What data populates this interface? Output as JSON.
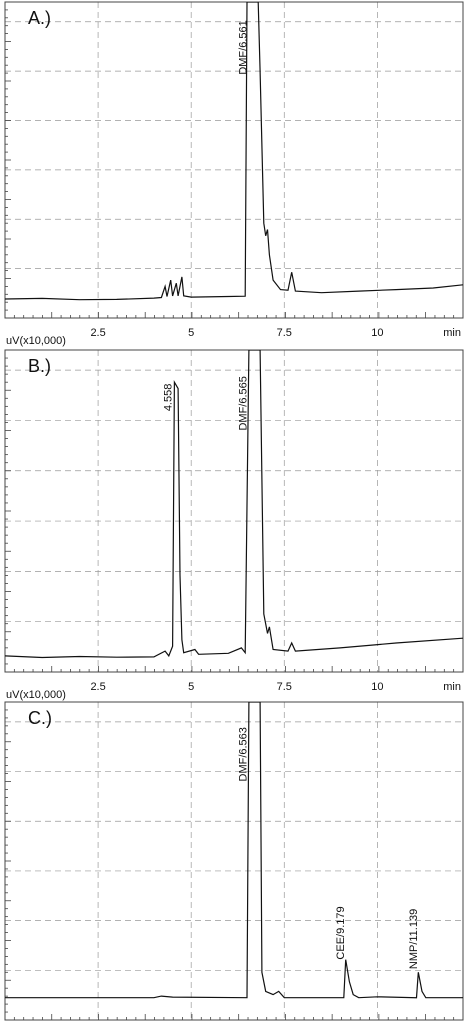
{
  "chart_data": [
    {
      "type": "line",
      "title": "A.)",
      "x_label": "min",
      "y_label": "uV(x10,000)",
      "color": "#111111",
      "xlim": [
        0,
        12.3
      ],
      "ylim": [
        0,
        100
      ],
      "xticks": [
        2.5,
        5.0,
        7.5,
        10.0
      ],
      "grid": true,
      "show_xtick_labels": true,
      "x": [
        0,
        1,
        2,
        3,
        4,
        4.2,
        4.3,
        4.35,
        4.45,
        4.5,
        4.6,
        4.65,
        4.75,
        4.8,
        5,
        6,
        6.45,
        6.5,
        6.8,
        6.85,
        6.95,
        7.0,
        7.05,
        7.1,
        7.2,
        7.4,
        7.6,
        7.7,
        7.8,
        8.5,
        9.5,
        10.5,
        11.5,
        12.3
      ],
      "values": [
        6,
        6.2,
        5.8,
        5.9,
        6.3,
        6.5,
        10,
        6.8,
        12,
        7,
        11,
        7,
        13,
        7,
        6.6,
        6.8,
        6.9,
        100,
        100,
        78,
        30,
        26,
        28,
        20,
        12,
        9,
        8.8,
        14.5,
        8.5,
        8,
        8.5,
        9,
        9.5,
        10.5
      ],
      "annotations": [
        {
          "text": "DMF/6.561",
          "x": 6.561,
          "y": 77
        }
      ]
    },
    {
      "type": "line",
      "title": "B.)",
      "x_label": "min",
      "y_label": "uV(x10,000)",
      "color": "#111111",
      "xlim": [
        0,
        12.3
      ],
      "ylim": [
        0,
        100
      ],
      "xticks": [
        2.5,
        5.0,
        7.5,
        10.0
      ],
      "grid": true,
      "show_xtick_labels": true,
      "x": [
        0,
        1,
        2,
        3,
        4,
        4.3,
        4.4,
        4.5,
        4.55,
        4.65,
        4.7,
        4.75,
        4.8,
        5.1,
        5.2,
        6,
        6.35,
        6.45,
        6.55,
        6.85,
        6.95,
        7.05,
        7.1,
        7.2,
        7.6,
        7.7,
        7.8,
        9,
        10.5,
        12.3
      ],
      "values": [
        5,
        4.5,
        4.8,
        4.6,
        4.7,
        6.5,
        5,
        8,
        90,
        88,
        30,
        10,
        6,
        7,
        5.5,
        5.8,
        7.5,
        6,
        100,
        100,
        18,
        12,
        14,
        7,
        6.5,
        9,
        6.5,
        7.5,
        9,
        10.5
      ],
      "annotations": [
        {
          "text": "4.558",
          "x": 4.558,
          "y": 81
        },
        {
          "text": "DMF/6.565",
          "x": 6.565,
          "y": 75
        }
      ]
    },
    {
      "type": "line",
      "title": "C.)",
      "color": "#111111",
      "xlim": [
        0,
        12.3
      ],
      "ylim": [
        0,
        100
      ],
      "xticks": [
        2.5,
        5.0,
        7.5,
        10.0
      ],
      "grid": true,
      "show_xtick_labels": false,
      "x": [
        0,
        4.0,
        4.2,
        4.5,
        6.5,
        6.55,
        6.85,
        6.9,
        7.0,
        7.2,
        7.35,
        7.5,
        9.1,
        9.15,
        9.25,
        9.35,
        9.5,
        10,
        11.05,
        11.1,
        11.2,
        11.3,
        12.3
      ],
      "values": [
        7,
        7,
        7.5,
        7.2,
        7,
        100,
        100,
        15,
        9,
        8,
        9,
        7,
        7,
        19,
        12,
        8,
        7,
        7.3,
        7,
        15,
        9,
        7,
        7
      ],
      "annotations": [
        {
          "text": "DMF/6.563",
          "x": 6.563,
          "y": 75
        },
        {
          "text": "CEE/9.179",
          "x": 9.179,
          "y": 19
        },
        {
          "text": "NMP/11.139",
          "x": 11.139,
          "y": 16
        }
      ]
    }
  ]
}
